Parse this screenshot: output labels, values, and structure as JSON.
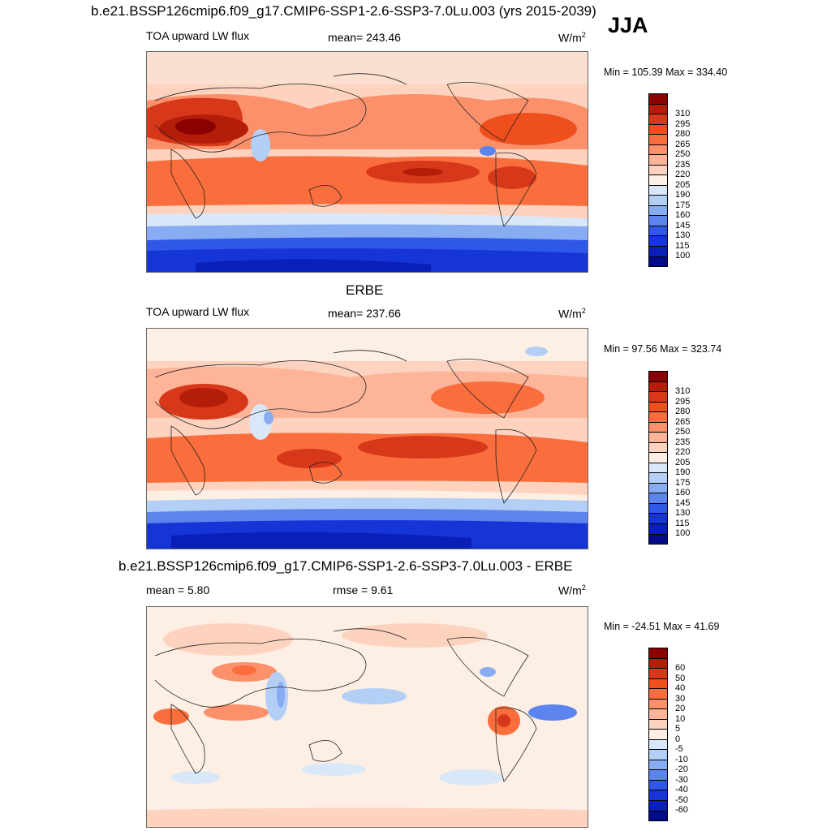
{
  "header": {
    "title": "b.e21.BSSP126cmip6.f09_g17.CMIP6-SSP1-2.6-SSP3-7.0Lu.003 (yrs 2015-2039)",
    "season": "JJA"
  },
  "panels": [
    {
      "variable": "TOA upward LW flux",
      "mean": "mean= 243.46",
      "units_base": "W/m",
      "units_exp": "2",
      "minmax": "Min = 105.39 Max = 334.40",
      "colorbar": {
        "colors": [
          "#8b0000",
          "#b51d0b",
          "#d8381a",
          "#ee4f1d",
          "#f96e3c",
          "#fb906b",
          "#fdb498",
          "#fdd3c0",
          "#fdefe4",
          "#d9e8f8",
          "#b4cff5",
          "#88acf2",
          "#5c84ee",
          "#2f58e8",
          "#1635d6",
          "#0a1eb8",
          "#020c8a"
        ],
        "labels": [
          "310",
          "295",
          "280",
          "265",
          "250",
          "235",
          "220",
          "205",
          "190",
          "175",
          "160",
          "145",
          "130",
          "115",
          "100"
        ]
      }
    },
    {
      "subtitle": "ERBE",
      "variable": "TOA upward LW flux",
      "mean": "mean= 237.66",
      "units_base": "W/m",
      "units_exp": "2",
      "minmax": "Min =  97.56 Max = 323.74",
      "colorbar": {
        "colors": [
          "#8b0000",
          "#b51d0b",
          "#d8381a",
          "#ee4f1d",
          "#f96e3c",
          "#fb906b",
          "#fdb498",
          "#fdd3c0",
          "#fdefe4",
          "#d9e8f8",
          "#b4cff5",
          "#88acf2",
          "#5c84ee",
          "#2f58e8",
          "#1635d6",
          "#0a1eb8",
          "#020c8a"
        ],
        "labels": [
          "310",
          "295",
          "280",
          "265",
          "250",
          "235",
          "220",
          "205",
          "190",
          "175",
          "160",
          "145",
          "130",
          "115",
          "100"
        ]
      }
    },
    {
      "subtitle": "b.e21.BSSP126cmip6.f09_g17.CMIP6-SSP1-2.6-SSP3-7.0Lu.003 - ERBE",
      "mean": "mean =   5.80",
      "rmse": "rmse =   9.61",
      "units_base": "W/m",
      "units_exp": "2",
      "minmax": "Min = -24.51 Max =  41.69",
      "colorbar": {
        "colors": [
          "#8b0000",
          "#b51d0b",
          "#d8381a",
          "#ee4f1d",
          "#f96e3c",
          "#fb906b",
          "#fdb498",
          "#fdd3c0",
          "#fdefe4",
          "#d9e8f8",
          "#b4cff5",
          "#88acf2",
          "#5c84ee",
          "#2f58e8",
          "#1635d6",
          "#0a1eb8",
          "#020c8a"
        ],
        "labels": [
          "60",
          "50",
          "40",
          "30",
          "20",
          "10",
          "5",
          "0",
          "-5",
          "-10",
          "-20",
          "-30",
          "-40",
          "-50",
          "-60"
        ]
      }
    }
  ]
}
